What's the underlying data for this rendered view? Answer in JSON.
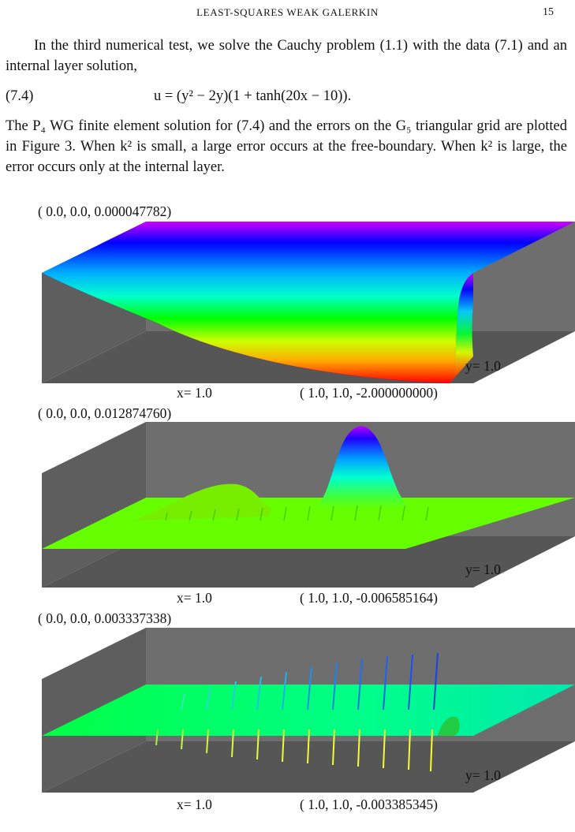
{
  "header": {
    "running_title": "LEAST-SQUARES WEAK GALERKIN",
    "page_number": "15"
  },
  "paragraphs": {
    "p1": "In the third numerical test, we solve the Cauchy problem (1.1) with the data (7.1) and an internal layer solution,",
    "eq_number": "(7.4)",
    "eq_body": "u = (y² − 2y)(1 + tanh(20x − 10)).",
    "p2": "The P₄ WG finite element solution for (7.4) and the errors on the G₅ triangular grid are plotted in Figure 3. When k² is small, a large error occurs at the free-boundary. When k² is large, the error occurs only at the internal layer."
  },
  "figures": [
    {
      "top_label": "( 0.0, 0.0,    0.000047782)",
      "x_label": "x= 1.0",
      "y_label": "y= 1.0",
      "corner_label": "( 1.0, 1.0,   -2.000000000)"
    },
    {
      "top_label": "( 0.0, 0.0,    0.012874760)",
      "x_label": "x= 1.0",
      "y_label": "y= 1.0",
      "corner_label": "( 1.0, 1.0,   -0.006585164)"
    },
    {
      "top_label": "( 0.0, 0.0,    0.003337338)",
      "x_label": "x= 1.0",
      "y_label": "y= 1.0",
      "corner_label": "( 1.0, 1.0,   -0.003385345)"
    }
  ],
  "colors": {
    "wall": "#6b6b6b",
    "floor": "#555555",
    "error_surface": "#66ff00",
    "error_surface_3": "#00ff66"
  }
}
